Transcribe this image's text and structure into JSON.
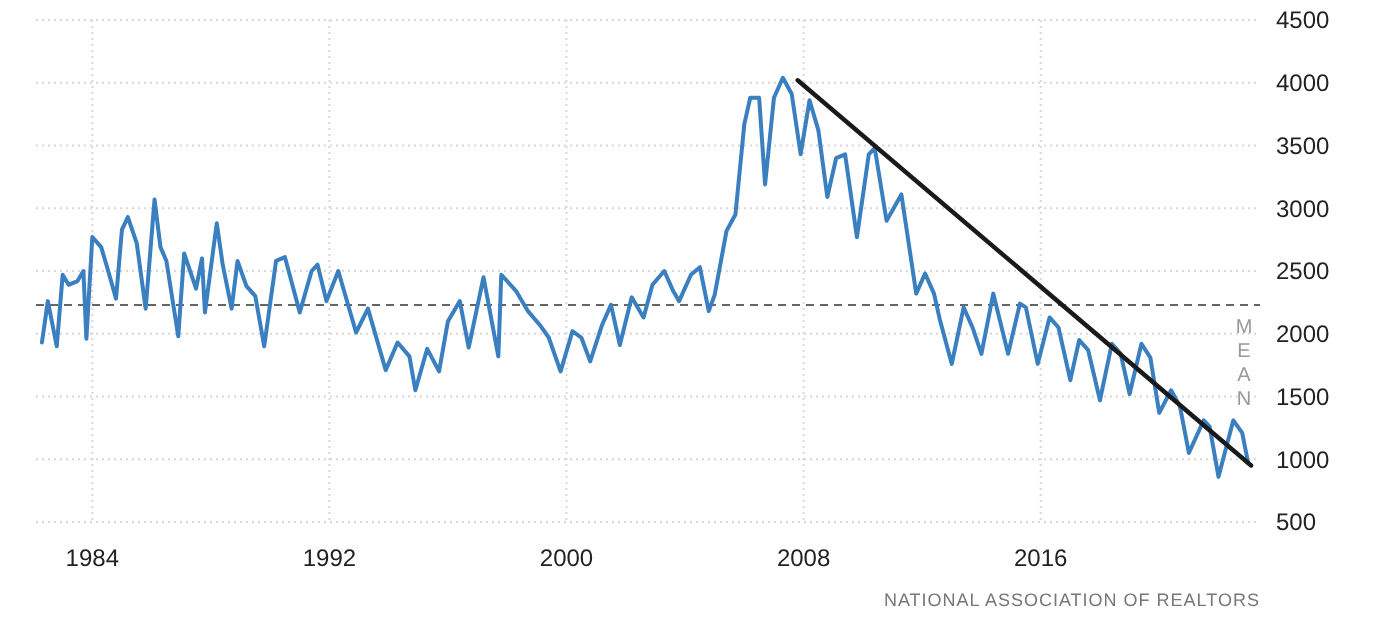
{
  "chart_data": {
    "type": "line",
    "x": [
      1982.3,
      1982.5,
      1982.8,
      1983.0,
      1983.2,
      1983.5,
      1983.7,
      1983.8,
      1984.0,
      1984.3,
      1984.5,
      1984.8,
      1985.0,
      1985.2,
      1985.5,
      1985.8,
      1986.1,
      1986.3,
      1986.5,
      1986.9,
      1987.1,
      1987.5,
      1987.7,
      1987.8,
      1988.2,
      1988.4,
      1988.7,
      1988.9,
      1989.2,
      1989.5,
      1989.8,
      1990.2,
      1990.5,
      1991.0,
      1991.4,
      1991.6,
      1991.9,
      1992.3,
      1992.9,
      1993.3,
      1993.9,
      1994.3,
      1994.7,
      1994.9,
      1995.3,
      1995.7,
      1996.0,
      1996.4,
      1996.7,
      1997.2,
      1997.7,
      1997.8,
      1998.3,
      1998.7,
      1999.1,
      1999.4,
      1999.8,
      2000.2,
      2000.5,
      2000.8,
      2001.2,
      2001.5,
      2001.8,
      2002.2,
      2002.6,
      2002.9,
      2003.3,
      2003.6,
      2003.8,
      2004.2,
      2004.5,
      2004.8,
      2005.0,
      2005.4,
      2005.7,
      2006.0,
      2006.2,
      2006.5,
      2006.7,
      2007.0,
      2007.3,
      2007.6,
      2007.9,
      2008.2,
      2008.5,
      2008.8,
      2009.1,
      2009.4,
      2009.8,
      2010.2,
      2010.4,
      2010.8,
      2011.3,
      2011.8,
      2012.1,
      2012.4,
      2012.6,
      2013.0,
      2013.4,
      2013.7,
      2014.0,
      2014.4,
      2014.9,
      2015.3,
      2015.5,
      2015.9,
      2016.3,
      2016.6,
      2017.0,
      2017.3,
      2017.6,
      2018.0,
      2018.4,
      2018.7,
      2019.0,
      2019.4,
      2019.7,
      2020.0,
      2020.4,
      2020.7,
      2021.0,
      2021.5,
      2021.7,
      2022.0,
      2022.5,
      2022.8,
      2023.0
    ],
    "series": [
      {
        "color": "#3a7fc0",
        "values": [
          1930,
          2260,
          1900,
          2470,
          2390,
          2420,
          2500,
          1960,
          2770,
          2690,
          2530,
          2280,
          2830,
          2930,
          2720,
          2200,
          3070,
          2690,
          2580,
          1980,
          2640,
          2360,
          2600,
          2170,
          2880,
          2550,
          2200,
          2580,
          2380,
          2300,
          1900,
          2580,
          2610,
          2170,
          2500,
          2550,
          2260,
          2500,
          2010,
          2200,
          1710,
          1930,
          1820,
          1550,
          1880,
          1700,
          2100,
          2260,
          1890,
          2450,
          1820,
          2470,
          2340,
          2180,
          2070,
          1970,
          1700,
          2020,
          1970,
          1780,
          2070,
          2230,
          1910,
          2290,
          2130,
          2390,
          2500,
          2340,
          2260,
          2470,
          2530,
          2180,
          2310,
          2820,
          2950,
          3670,
          3880,
          3880,
          3190,
          3880,
          4040,
          3910,
          3430,
          3860,
          3620,
          3090,
          3400,
          3430,
          2770,
          3430,
          3480,
          2900,
          3110,
          2320,
          2480,
          2320,
          2110,
          1760,
          2210,
          2050,
          1840,
          2320,
          1840,
          2240,
          2210,
          1760,
          2130,
          2050,
          1630,
          1950,
          1870,
          1470,
          1920,
          1840,
          1520,
          1920,
          1810,
          1370,
          1550,
          1420,
          1050,
          1310,
          1260,
          860,
          1310,
          1210,
          970
        ]
      },
      {
        "color": "#1a1a1a",
        "x": [
          2007.8,
          2023.1
        ],
        "values": [
          4020,
          950
        ]
      }
    ],
    "xlim": [
      1982.1,
      2023.4
    ],
    "xticks": [
      1984,
      1992,
      2000,
      2008,
      2016
    ],
    "ylim": [
      500,
      4500
    ],
    "yticks": [
      500,
      1000,
      1500,
      2000,
      2500,
      3000,
      3500,
      4000,
      4500
    ],
    "grid": true,
    "ref_lines": [
      {
        "axis": "y",
        "value": 2230,
        "label": "MEAN",
        "line_style": "dashed",
        "color": "#666666"
      }
    ],
    "annotations": [
      "NATIONAL ASSOCIATION OF REALTORS"
    ]
  }
}
